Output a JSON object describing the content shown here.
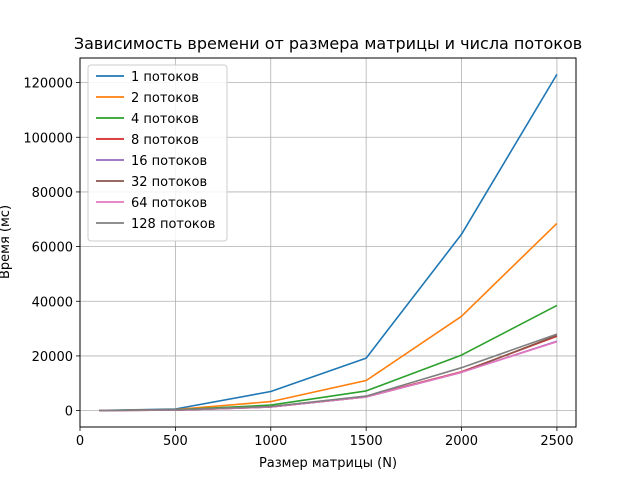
{
  "chart_data": {
    "type": "line",
    "title": "Зависимость времени от размера матрицы и числа потоков",
    "xlabel": "Размер матрицы (N)",
    "ylabel": "Время (мс)",
    "xlim": [
      0,
      2600
    ],
    "ylim": [
      -6000,
      129000
    ],
    "xticks": [
      0,
      500,
      1000,
      1500,
      2000,
      2500
    ],
    "yticks": [
      0,
      20000,
      40000,
      60000,
      80000,
      100000,
      120000
    ],
    "grid": true,
    "legend_position": "top-left",
    "x": [
      100,
      500,
      1000,
      1500,
      2000,
      2500
    ],
    "series": [
      {
        "name": "1 потоков",
        "color": "#1f77b4",
        "values": [
          60,
          600,
          7000,
          19200,
          64500,
          123000
        ]
      },
      {
        "name": "2 потоков",
        "color": "#ff7f0e",
        "values": [
          40,
          400,
          3300,
          11000,
          34500,
          68500
        ]
      },
      {
        "name": "4 потоков",
        "color": "#2ca02c",
        "values": [
          30,
          300,
          2000,
          7200,
          20300,
          38500
        ]
      },
      {
        "name": "8 потоков",
        "color": "#d62728",
        "values": [
          20,
          200,
          1400,
          5200,
          14200,
          27200
        ]
      },
      {
        "name": "16 потоков",
        "color": "#9467bd",
        "values": [
          20,
          200,
          1300,
          5000,
          14000,
          25400
        ]
      },
      {
        "name": "32 потоков",
        "color": "#8c564b",
        "values": [
          20,
          200,
          1300,
          5000,
          14000,
          27500
        ]
      },
      {
        "name": "64 потоков",
        "color": "#e377c2",
        "values": [
          20,
          200,
          1300,
          5000,
          14000,
          25200
        ]
      },
      {
        "name": "128 потоков",
        "color": "#7f7f7f",
        "values": [
          30,
          300,
          1500,
          5300,
          15700,
          28000
        ]
      }
    ]
  }
}
